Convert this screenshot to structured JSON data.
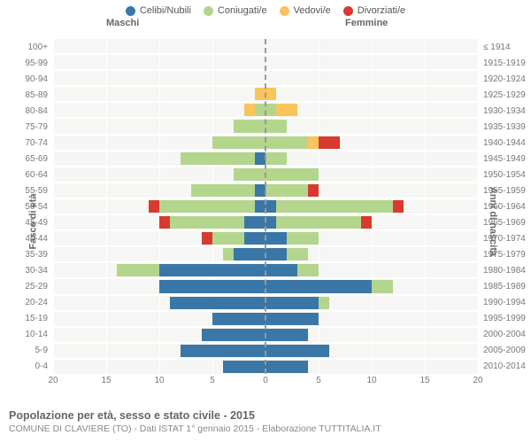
{
  "chart": {
    "type": "population-pyramid",
    "legend": [
      {
        "label": "Celibi/Nubili",
        "color": "#3a77a6"
      },
      {
        "label": "Coniugati/e",
        "color": "#b3d68c"
      },
      {
        "label": "Vedovi/e",
        "color": "#f9c45b"
      },
      {
        "label": "Divorziati/e",
        "color": "#d83a2f"
      }
    ],
    "label_males": "Maschi",
    "label_females": "Femmine",
    "axis_left_title": "Fasce di età",
    "axis_right_title": "Anni di nascita",
    "background_color": "#f6f6f4",
    "grid_color": "#ffffff",
    "xmax": 20,
    "x_ticks": [
      20,
      15,
      10,
      5,
      0,
      5,
      10,
      15,
      20
    ],
    "categories": [
      "100+",
      "95-99",
      "90-94",
      "85-89",
      "80-84",
      "75-79",
      "70-74",
      "65-69",
      "60-64",
      "55-59",
      "50-54",
      "45-49",
      "40-44",
      "35-39",
      "30-34",
      "25-29",
      "20-24",
      "15-19",
      "10-14",
      "5-9",
      "0-4"
    ],
    "birth_years": [
      "≤ 1914",
      "1915-1919",
      "1920-1924",
      "1925-1929",
      "1930-1934",
      "1935-1939",
      "1940-1944",
      "1945-1949",
      "1950-1954",
      "1955-1959",
      "1960-1964",
      "1965-1969",
      "1970-1974",
      "1975-1979",
      "1980-1984",
      "1985-1989",
      "1990-1994",
      "1995-1999",
      "2000-2004",
      "2005-2009",
      "2010-2014"
    ],
    "rows": [
      {
        "m": {
          "s": 0,
          "c": 0,
          "w": 0,
          "d": 0
        },
        "f": {
          "s": 0,
          "c": 0,
          "w": 0,
          "d": 0
        }
      },
      {
        "m": {
          "s": 0,
          "c": 0,
          "w": 0,
          "d": 0
        },
        "f": {
          "s": 0,
          "c": 0,
          "w": 0,
          "d": 0
        }
      },
      {
        "m": {
          "s": 0,
          "c": 0,
          "w": 0,
          "d": 0
        },
        "f": {
          "s": 0,
          "c": 0,
          "w": 0,
          "d": 0
        }
      },
      {
        "m": {
          "s": 0,
          "c": 0,
          "w": 1,
          "d": 0
        },
        "f": {
          "s": 0,
          "c": 0,
          "w": 1,
          "d": 0
        }
      },
      {
        "m": {
          "s": 0,
          "c": 1,
          "w": 1,
          "d": 0
        },
        "f": {
          "s": 0,
          "c": 1,
          "w": 2,
          "d": 0
        }
      },
      {
        "m": {
          "s": 0,
          "c": 3,
          "w": 0,
          "d": 0
        },
        "f": {
          "s": 0,
          "c": 2,
          "w": 0,
          "d": 0
        }
      },
      {
        "m": {
          "s": 0,
          "c": 5,
          "w": 0,
          "d": 0
        },
        "f": {
          "s": 0,
          "c": 4,
          "w": 1,
          "d": 2
        }
      },
      {
        "m": {
          "s": 1,
          "c": 7,
          "w": 0,
          "d": 0
        },
        "f": {
          "s": 0,
          "c": 2,
          "w": 0,
          "d": 0
        }
      },
      {
        "m": {
          "s": 0,
          "c": 3,
          "w": 0,
          "d": 0
        },
        "f": {
          "s": 0,
          "c": 5,
          "w": 0,
          "d": 0
        }
      },
      {
        "m": {
          "s": 1,
          "c": 6,
          "w": 0,
          "d": 0
        },
        "f": {
          "s": 0,
          "c": 4,
          "w": 0,
          "d": 1
        }
      },
      {
        "m": {
          "s": 1,
          "c": 9,
          "w": 0,
          "d": 1
        },
        "f": {
          "s": 1,
          "c": 11,
          "w": 0,
          "d": 1
        }
      },
      {
        "m": {
          "s": 2,
          "c": 7,
          "w": 0,
          "d": 1
        },
        "f": {
          "s": 1,
          "c": 8,
          "w": 0,
          "d": 1
        }
      },
      {
        "m": {
          "s": 2,
          "c": 3,
          "w": 0,
          "d": 1
        },
        "f": {
          "s": 2,
          "c": 3,
          "w": 0,
          "d": 0
        }
      },
      {
        "m": {
          "s": 3,
          "c": 1,
          "w": 0,
          "d": 0
        },
        "f": {
          "s": 2,
          "c": 2,
          "w": 0,
          "d": 0
        }
      },
      {
        "m": {
          "s": 10,
          "c": 4,
          "w": 0,
          "d": 0
        },
        "f": {
          "s": 3,
          "c": 2,
          "w": 0,
          "d": 0
        }
      },
      {
        "m": {
          "s": 10,
          "c": 0,
          "w": 0,
          "d": 0
        },
        "f": {
          "s": 10,
          "c": 2,
          "w": 0,
          "d": 0
        }
      },
      {
        "m": {
          "s": 9,
          "c": 0,
          "w": 0,
          "d": 0
        },
        "f": {
          "s": 5,
          "c": 1,
          "w": 0,
          "d": 0
        }
      },
      {
        "m": {
          "s": 5,
          "c": 0,
          "w": 0,
          "d": 0
        },
        "f": {
          "s": 5,
          "c": 0,
          "w": 0,
          "d": 0
        }
      },
      {
        "m": {
          "s": 6,
          "c": 0,
          "w": 0,
          "d": 0
        },
        "f": {
          "s": 4,
          "c": 0,
          "w": 0,
          "d": 0
        }
      },
      {
        "m": {
          "s": 8,
          "c": 0,
          "w": 0,
          "d": 0
        },
        "f": {
          "s": 6,
          "c": 0,
          "w": 0,
          "d": 0
        }
      },
      {
        "m": {
          "s": 4,
          "c": 0,
          "w": 0,
          "d": 0
        },
        "f": {
          "s": 4,
          "c": 0,
          "w": 0,
          "d": 0
        }
      }
    ],
    "footer_title": "Popolazione per età, sesso e stato civile - 2015",
    "footer_sub": "COMUNE DI CLAVIERE (TO) - Dati ISTAT 1° gennaio 2015 - Elaborazione TUTTITALIA.IT"
  }
}
